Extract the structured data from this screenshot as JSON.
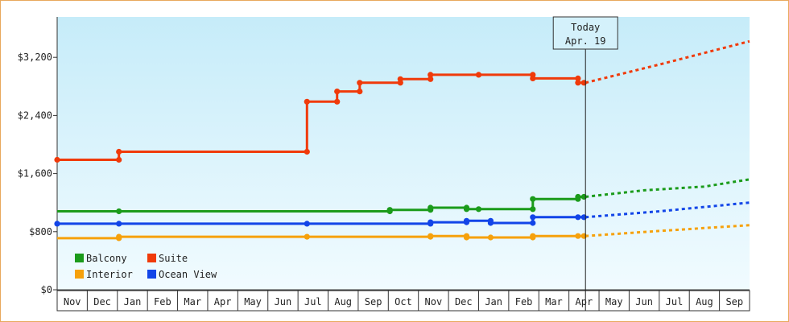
{
  "chart_data": {
    "type": "line",
    "title": "",
    "xlabel": "",
    "ylabel": "",
    "ylim": [
      0,
      3200
    ],
    "y_ticks": [
      {
        "value": 0,
        "label": "$0"
      },
      {
        "value": 800,
        "label": "$800"
      },
      {
        "value": 1600,
        "label": "$1,600"
      },
      {
        "value": 2400,
        "label": "$2,400"
      },
      {
        "value": 3200,
        "label": "$3,200"
      }
    ],
    "x_unit": "month index (0 = Nov, 1 = Dec, …, 22 = Sep)",
    "x_labels": [
      "Nov",
      "Dec",
      "Jan",
      "Feb",
      "Mar",
      "Apr",
      "May",
      "Jun",
      "Jul",
      "Aug",
      "Sep",
      "Oct",
      "Nov",
      "Dec",
      "Jan",
      "Feb",
      "Mar",
      "Apr",
      "May",
      "Jun",
      "Jul",
      "Aug",
      "Sep"
    ],
    "today": {
      "label": "Today",
      "date": "Apr. 19",
      "x": 17.55
    },
    "grid": false,
    "legend": {
      "position": "bottom-left",
      "entries": [
        {
          "name": "Balcony",
          "color": "#1b9b1b"
        },
        {
          "name": "Suite",
          "color": "#f03a0a"
        },
        {
          "name": "Interior",
          "color": "#f6a10c"
        },
        {
          "name": "Ocean View",
          "color": "#1245e8"
        }
      ]
    },
    "series": [
      {
        "name": "Suite",
        "color": "#f03a0a",
        "points": [
          [
            0,
            1790
          ],
          [
            2.05,
            1790
          ],
          [
            2.05,
            1900
          ],
          [
            8.3,
            1900
          ],
          [
            8.3,
            2590
          ],
          [
            9.3,
            2590
          ],
          [
            9.3,
            2730
          ],
          [
            10.05,
            2730
          ],
          [
            10.05,
            2850
          ],
          [
            11.4,
            2850
          ],
          [
            11.4,
            2900
          ],
          [
            12.4,
            2900
          ],
          [
            12.4,
            2960
          ],
          [
            15.8,
            2960
          ],
          [
            15.8,
            2910
          ],
          [
            17.3,
            2910
          ],
          [
            17.3,
            2850
          ],
          [
            17.55,
            2850
          ]
        ],
        "markers": [
          [
            0,
            1790
          ],
          [
            2.05,
            1790
          ],
          [
            2.05,
            1900
          ],
          [
            8.3,
            1900
          ],
          [
            8.3,
            2590
          ],
          [
            9.3,
            2590
          ],
          [
            9.3,
            2730
          ],
          [
            10.05,
            2730
          ],
          [
            10.05,
            2850
          ],
          [
            11.4,
            2850
          ],
          [
            11.4,
            2900
          ],
          [
            12.4,
            2900
          ],
          [
            12.4,
            2960
          ],
          [
            14.0,
            2960
          ],
          [
            15.8,
            2960
          ],
          [
            15.8,
            2910
          ],
          [
            17.3,
            2910
          ],
          [
            17.3,
            2850
          ],
          [
            17.5,
            2850
          ]
        ],
        "projection": [
          [
            17.55,
            2850
          ],
          [
            20,
            3100
          ],
          [
            23,
            3420
          ]
        ]
      },
      {
        "name": "Balcony",
        "color": "#1b9b1b",
        "points": [
          [
            0,
            1080
          ],
          [
            2.05,
            1080
          ],
          [
            11.05,
            1080
          ],
          [
            11.05,
            1100
          ],
          [
            12.4,
            1100
          ],
          [
            12.4,
            1130
          ],
          [
            13.6,
            1130
          ],
          [
            13.6,
            1110
          ],
          [
            15.8,
            1110
          ],
          [
            15.8,
            1250
          ],
          [
            17.3,
            1250
          ],
          [
            17.3,
            1280
          ],
          [
            17.55,
            1280
          ]
        ],
        "markers": [
          [
            2.05,
            1080
          ],
          [
            11.05,
            1080
          ],
          [
            11.05,
            1100
          ],
          [
            12.4,
            1100
          ],
          [
            12.4,
            1130
          ],
          [
            13.6,
            1130
          ],
          [
            13.6,
            1110
          ],
          [
            14.0,
            1110
          ],
          [
            15.8,
            1110
          ],
          [
            15.8,
            1250
          ],
          [
            17.3,
            1250
          ],
          [
            17.3,
            1280
          ],
          [
            17.5,
            1280
          ]
        ],
        "projection": [
          [
            17.55,
            1280
          ],
          [
            19.5,
            1370
          ],
          [
            21.5,
            1420
          ],
          [
            23,
            1520
          ]
        ]
      },
      {
        "name": "Ocean View",
        "color": "#1245e8",
        "points": [
          [
            0,
            910
          ],
          [
            8.3,
            910
          ],
          [
            12.4,
            910
          ],
          [
            12.4,
            930
          ],
          [
            13.6,
            930
          ],
          [
            13.6,
            950
          ],
          [
            14.4,
            950
          ],
          [
            14.4,
            920
          ],
          [
            15.8,
            920
          ],
          [
            15.8,
            1000
          ],
          [
            17.3,
            1000
          ],
          [
            17.55,
            1000
          ]
        ],
        "markers": [
          [
            0,
            910
          ],
          [
            2.05,
            910
          ],
          [
            8.3,
            910
          ],
          [
            12.4,
            910
          ],
          [
            12.4,
            930
          ],
          [
            13.6,
            930
          ],
          [
            13.6,
            950
          ],
          [
            14.4,
            950
          ],
          [
            14.4,
            920
          ],
          [
            15.8,
            920
          ],
          [
            15.8,
            1000
          ],
          [
            17.3,
            1000
          ],
          [
            17.5,
            1000
          ]
        ],
        "projection": [
          [
            17.55,
            1000
          ],
          [
            20,
            1080
          ],
          [
            23,
            1200
          ]
        ]
      },
      {
        "name": "Interior",
        "color": "#f6a10c",
        "points": [
          [
            0,
            710
          ],
          [
            2.05,
            710
          ],
          [
            2.05,
            730
          ],
          [
            8.3,
            730
          ],
          [
            12.4,
            730
          ],
          [
            12.4,
            740
          ],
          [
            13.6,
            740
          ],
          [
            13.6,
            720
          ],
          [
            15.8,
            720
          ],
          [
            15.8,
            740
          ],
          [
            17.55,
            740
          ]
        ],
        "markers": [
          [
            2.05,
            710
          ],
          [
            2.05,
            730
          ],
          [
            8.3,
            730
          ],
          [
            12.4,
            730
          ],
          [
            12.4,
            740
          ],
          [
            13.6,
            740
          ],
          [
            13.6,
            720
          ],
          [
            14.4,
            720
          ],
          [
            15.8,
            720
          ],
          [
            15.8,
            740
          ],
          [
            17.3,
            740
          ],
          [
            17.5,
            740
          ]
        ],
        "projection": [
          [
            17.55,
            740
          ],
          [
            20,
            810
          ],
          [
            23,
            890
          ]
        ]
      }
    ]
  }
}
